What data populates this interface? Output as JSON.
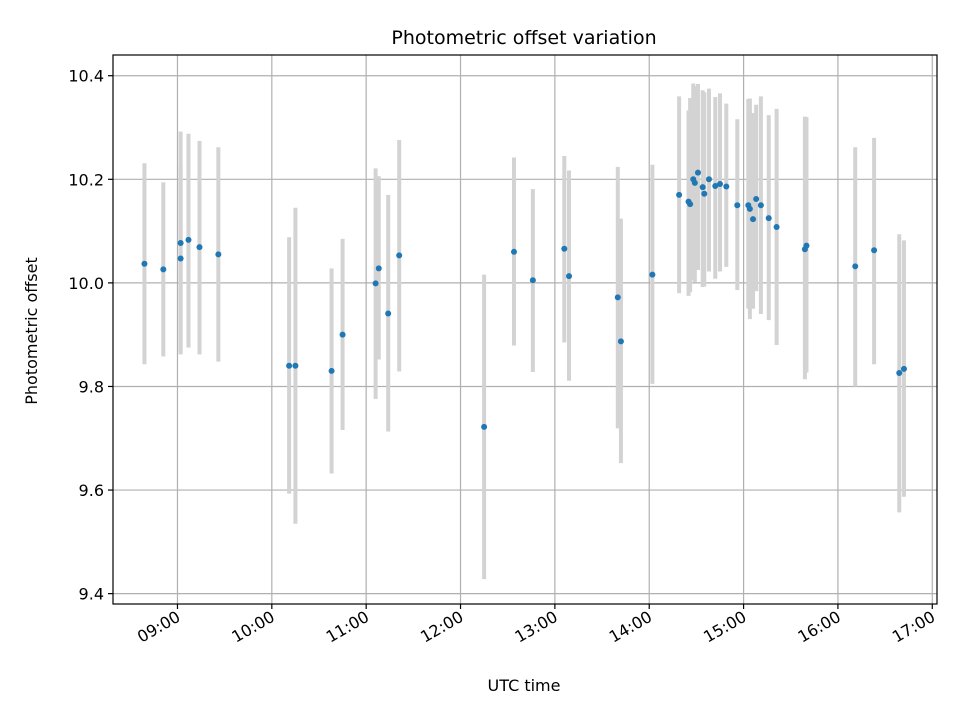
{
  "chart_data": {
    "type": "scatter",
    "title": "Photometric offset variation",
    "xlabel": "UTC time",
    "ylabel": "Photometric offset",
    "grid": true,
    "xlim": [
      "08:19",
      "17:03"
    ],
    "ylim": [
      9.38,
      10.44
    ],
    "x_ticks": [
      "09:00",
      "10:00",
      "11:00",
      "12:00",
      "13:00",
      "14:00",
      "15:00",
      "16:00",
      "17:00"
    ],
    "y_ticks": [
      "9.4",
      "9.6",
      "9.8",
      "10.0",
      "10.2",
      "10.4"
    ],
    "colors": {
      "points": "#1f77b4",
      "errorbars": "#d3d3d3",
      "grid": "#b0b0b0"
    },
    "series": [
      {
        "x": [
          "08:39",
          "08:51",
          "09:02",
          "09:02",
          "09:07",
          "09:14",
          "09:26",
          "10:11",
          "10:15",
          "10:38",
          "10:45",
          "11:06",
          "11:08",
          "11:14",
          "11:21",
          "12:15",
          "12:34",
          "12:46",
          "13:06",
          "13:09",
          "13:40",
          "13:42",
          "14:02",
          "14:19",
          "14:25",
          "14:26",
          "14:28",
          "14:29",
          "14:31",
          "14:34",
          "14:35",
          "14:38",
          "14:42",
          "14:45",
          "14:49",
          "14:56",
          "15:03",
          "15:04",
          "15:06",
          "15:08",
          "15:11",
          "15:16",
          "15:21",
          "15:39",
          "15:40",
          "16:11",
          "16:23",
          "16:39",
          "16:42"
        ],
        "y": [
          10.037,
          10.026,
          10.047,
          10.077,
          10.083,
          10.069,
          10.055,
          9.84,
          9.84,
          9.83,
          9.9,
          9.999,
          10.028,
          9.941,
          10.053,
          9.722,
          10.06,
          10.005,
          10.066,
          10.013,
          9.972,
          9.887,
          10.016,
          10.17,
          10.157,
          10.152,
          10.2,
          10.193,
          10.213,
          10.185,
          10.172,
          10.2,
          10.187,
          10.191,
          10.186,
          10.15,
          10.15,
          10.143,
          10.123,
          10.162,
          10.15,
          10.125,
          10.108,
          10.065,
          10.072,
          10.032,
          10.063,
          9.826,
          9.834
        ],
        "err_low": [
          9.843,
          9.858,
          9.862,
          9.865,
          9.875,
          9.862,
          9.848,
          9.593,
          9.535,
          9.632,
          9.716,
          9.776,
          9.852,
          9.713,
          9.829,
          9.428,
          9.879,
          9.828,
          9.885,
          9.811,
          9.719,
          9.652,
          9.805,
          9.98,
          9.975,
          9.982,
          10.005,
          10.001,
          10.025,
          9.992,
          9.993,
          10.022,
          10.008,
          10.022,
          10.031,
          9.986,
          9.95,
          9.93,
          9.95,
          9.984,
          9.94,
          9.928,
          9.88,
          9.814,
          9.827,
          9.8,
          9.843,
          9.557,
          9.587
        ],
        "err_high": [
          10.231,
          10.194,
          10.226,
          10.292,
          10.288,
          10.274,
          10.262,
          10.088,
          10.145,
          10.028,
          10.085,
          10.221,
          10.206,
          10.17,
          10.276,
          10.016,
          10.242,
          10.181,
          10.245,
          10.217,
          10.224,
          10.124,
          10.228,
          10.36,
          10.333,
          10.357,
          10.385,
          10.38,
          10.384,
          10.372,
          10.368,
          10.375,
          10.359,
          10.366,
          10.346,
          10.316,
          10.355,
          10.356,
          10.328,
          10.344,
          10.36,
          10.324,
          10.336,
          10.321,
          10.32,
          10.262,
          10.28,
          10.094,
          10.082
        ]
      }
    ]
  }
}
